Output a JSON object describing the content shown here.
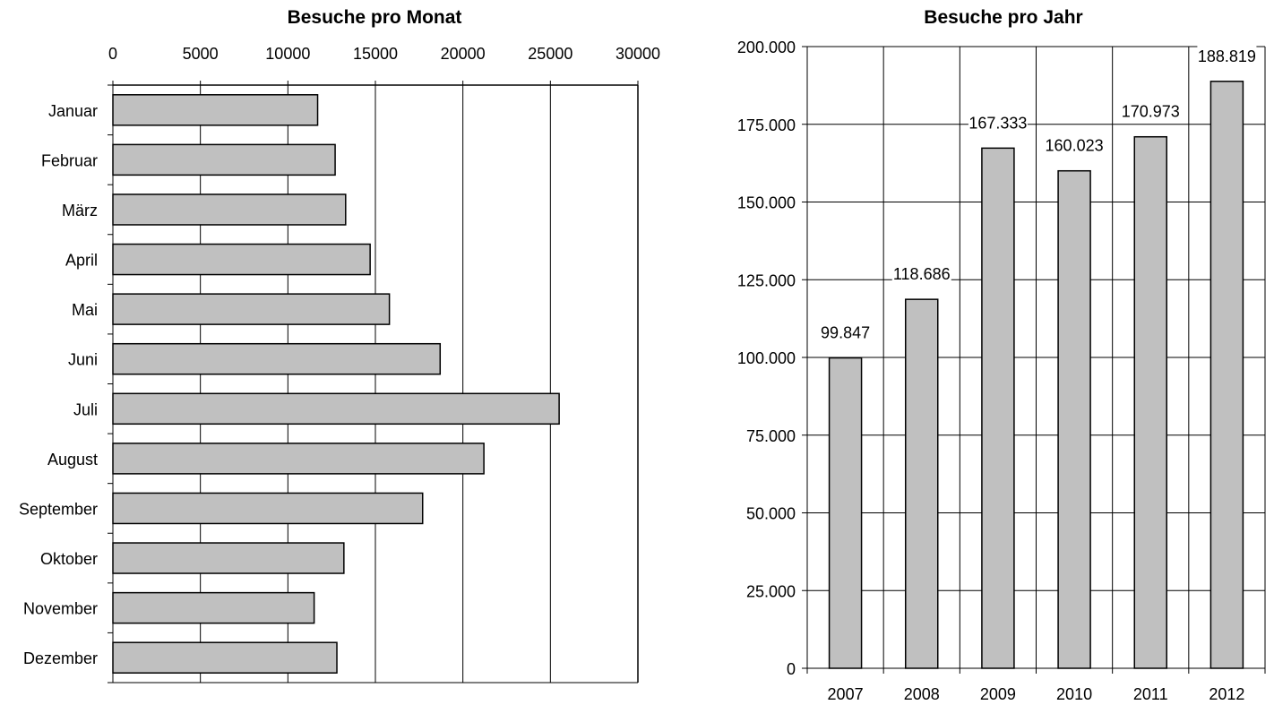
{
  "colors": {
    "bar_fill": "#c0c0c0",
    "bar_stroke": "#000000",
    "grid": "#000000",
    "background": "#ffffff"
  },
  "chart_data": [
    {
      "type": "bar",
      "orientation": "horizontal",
      "title": "Besuche pro Monat",
      "categories": [
        "Januar",
        "Februar",
        "März",
        "April",
        "Mai",
        "Juni",
        "Juli",
        "August",
        "September",
        "Oktober",
        "November",
        "Dezember"
      ],
      "values": [
        11700,
        12700,
        13300,
        14700,
        15800,
        18700,
        25500,
        21200,
        17700,
        13200,
        11500,
        12800
      ],
      "xlim": [
        0,
        30000
      ],
      "x_ticks": [
        "0",
        "5000",
        "10000",
        "15000",
        "20000",
        "25000",
        "30000"
      ],
      "x_tick_values": [
        0,
        5000,
        10000,
        15000,
        20000,
        25000,
        30000
      ],
      "axis_position": "top",
      "grid": "vertical",
      "legend": "none"
    },
    {
      "type": "bar",
      "orientation": "vertical",
      "title": "Besuche pro Jahr",
      "categories": [
        "2007",
        "2008",
        "2009",
        "2010",
        "2011",
        "2012"
      ],
      "values": [
        99847,
        118686,
        167333,
        160023,
        170973,
        188819
      ],
      "data_labels": [
        "99.847",
        "118.686",
        "167.333",
        "160.023",
        "170.973",
        "188.819"
      ],
      "ylim": [
        0,
        200000
      ],
      "y_ticks": [
        "0",
        "25.000",
        "50.000",
        "75.000",
        "100.000",
        "125.000",
        "150.000",
        "175.000",
        "200.000"
      ],
      "y_tick_values": [
        0,
        25000,
        50000,
        75000,
        100000,
        125000,
        150000,
        175000,
        200000
      ],
      "grid": "both",
      "legend": "none"
    }
  ]
}
